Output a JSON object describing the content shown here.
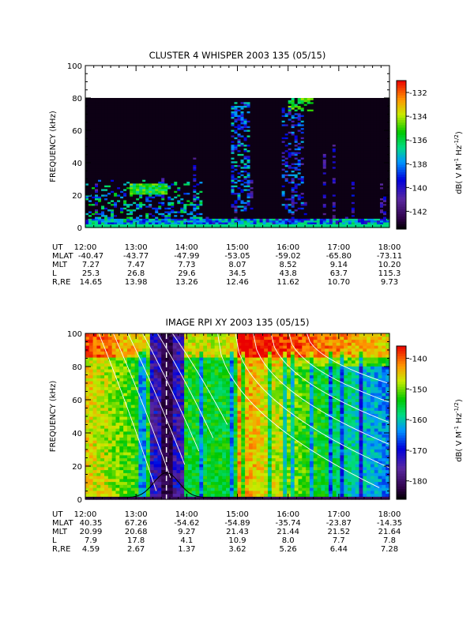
{
  "chart_data": [
    {
      "type": "heatmap",
      "title": "CLUSTER 4 WHISPER 2003 135 (05/15)",
      "ylabel": "FREQUENCY (kHz)",
      "ylim": [
        0,
        100
      ],
      "y_ticks": [
        "0",
        "20",
        "40",
        "60",
        "80",
        "100"
      ],
      "x_range_hours": [
        12,
        18
      ],
      "data_max_khz": 80,
      "colorbar": {
        "label": "dB( V M⁻¹ Hz⁻¹ᐟ²)",
        "label_parts": [
          "dB( V M",
          "-1",
          " Hz",
          "-1/2",
          ")"
        ],
        "range": [
          -143.5,
          -131
        ],
        "ticks": [
          "-132",
          "-134",
          "-136",
          "-138",
          "-140",
          "-142"
        ]
      },
      "ephemeris": {
        "labels": [
          "UT",
          "MLAT",
          "MLT",
          "L",
          "R,RE"
        ],
        "rows": [
          [
            "12:00",
            "13:00",
            "14:00",
            "15:00",
            "16:00",
            "17:00",
            "18:00"
          ],
          [
            "-40.47",
            "-43.77",
            "-47.99",
            "-53.05",
            "-59.02",
            "-65.80",
            "-73.11"
          ],
          [
            "7.27",
            "7.47",
            "7.73",
            "8.07",
            "8.52",
            "9.14",
            "10.20"
          ],
          [
            "25.3",
            "26.8",
            "29.6",
            "34.5",
            "43.8",
            "63.7",
            "115.3"
          ],
          [
            "14.65",
            "13.98",
            "13.26",
            "12.46",
            "11.62",
            "10.70",
            "9.73"
          ]
        ]
      }
    },
    {
      "type": "heatmap",
      "title": "IMAGE RPI XY 2003 135 (05/15)",
      "ylabel": "FREQUENCY (kHz)",
      "ylim": [
        0,
        100
      ],
      "y_ticks": [
        "0",
        "20",
        "40",
        "60",
        "80",
        "100"
      ],
      "x_range_hours": [
        12,
        18
      ],
      "data_max_khz": 100,
      "dashed_marker_hour": 13.6,
      "colorbar": {
        "label": "dB( V M⁻¹ Hz⁻¹ᐟ²)",
        "label_parts": [
          "dB( V M",
          "-1",
          " Hz",
          "-1/2",
          ")"
        ],
        "range": [
          -186,
          -136
        ],
        "ticks": [
          "-140",
          "-150",
          "-160",
          "-170",
          "-180"
        ]
      },
      "ephemeris": {
        "labels": [
          "UT",
          "MLAT",
          "MLT",
          "L",
          "R,RE"
        ],
        "rows": [
          [
            "12:00",
            "13:00",
            "14:00",
            "15:00",
            "16:00",
            "17:00",
            "18:00"
          ],
          [
            "40.35",
            "67.26",
            "-54.62",
            "-54.89",
            "-35.74",
            "-23.87",
            "-14.35"
          ],
          [
            "20.99",
            "20.68",
            "9.27",
            "21.43",
            "21.44",
            "21.52",
            "21.64"
          ],
          [
            "7.9",
            "17.8",
            "4.1",
            "10.9",
            "8.0",
            "7.7",
            "7.8"
          ],
          [
            "4.59",
            "2.67",
            "1.37",
            "3.62",
            "5.26",
            "6.44",
            "7.28"
          ]
        ]
      }
    }
  ]
}
